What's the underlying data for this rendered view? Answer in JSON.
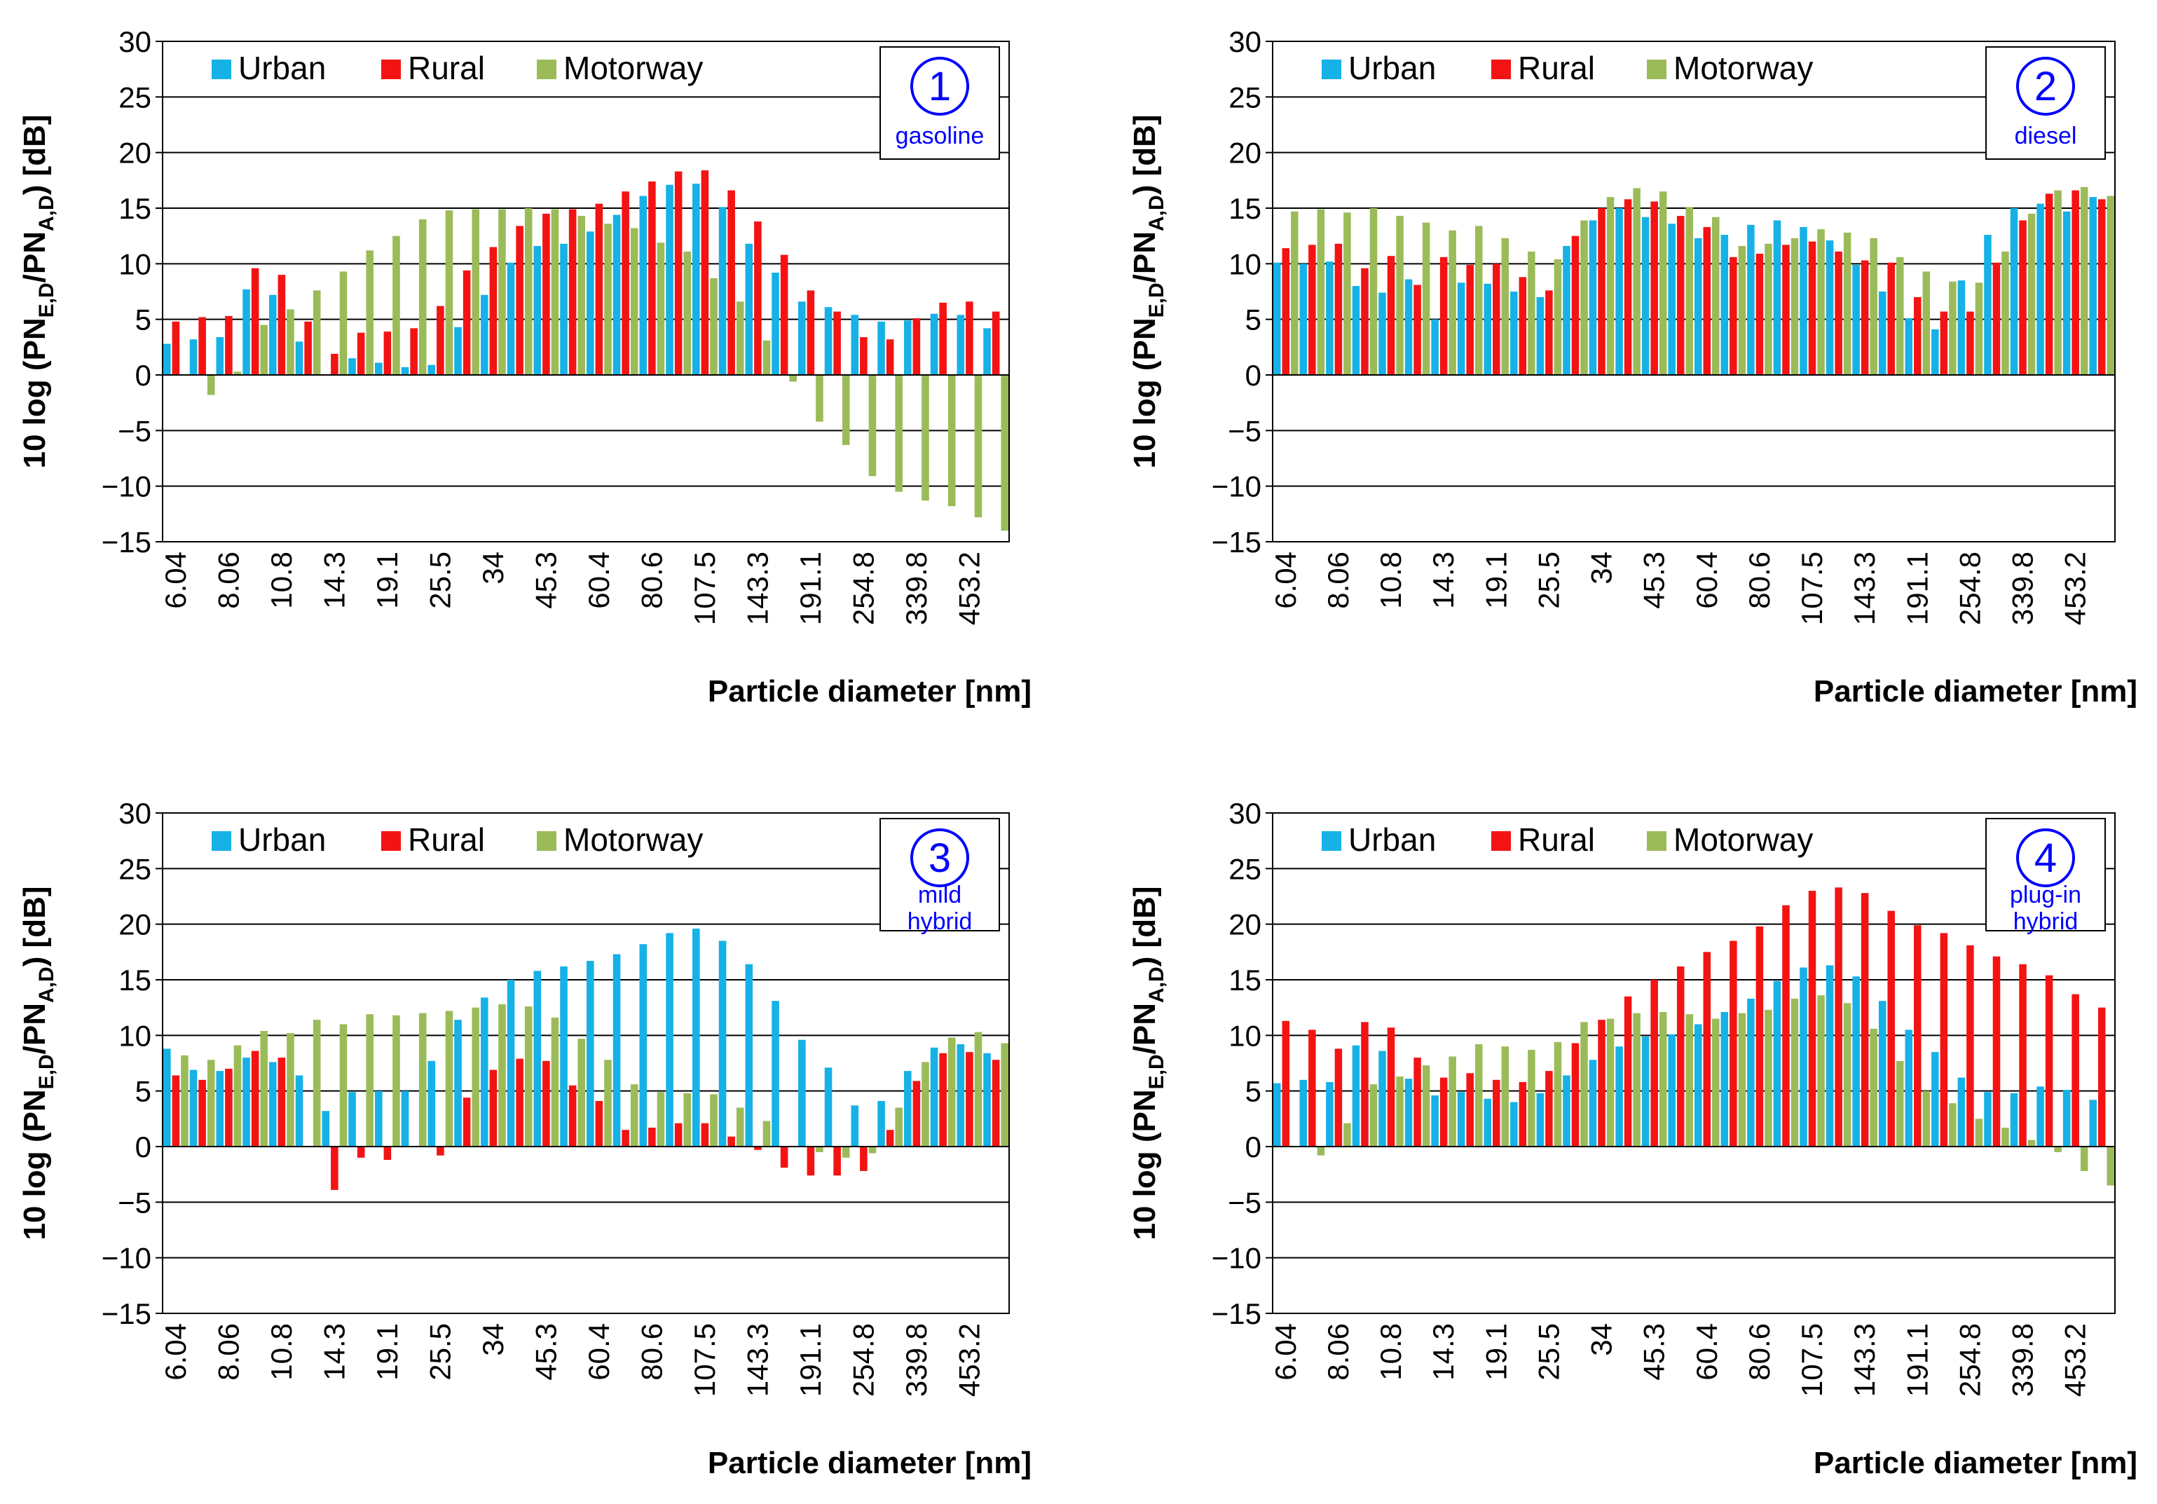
{
  "figure": {
    "bin_labels": [
      "6.04",
      "8.06",
      "10.8",
      "14.3",
      "19.1",
      "25.5",
      "34",
      "45.3",
      "60.4",
      "80.6",
      "107.5",
      "143.3",
      "191.1",
      "254.8",
      "339.8",
      "453.2"
    ],
    "colors": {
      "Urban": "#16b1e6",
      "Rural": "#f41313",
      "Motorway": "#9bbb59",
      "badge": "#0000ff",
      "axis": "#000000"
    },
    "legend": [
      "Urban",
      "Rural",
      "Motorway"
    ]
  },
  "chart_data": [
    {
      "type": "bar",
      "badge_number": "1",
      "badge_text": [
        "gasoline"
      ],
      "ylabel_prefix": "10 log (PN",
      "ylabel_sub1": "E,D",
      "ylabel_mid": "/PN",
      "ylabel_sub2": "A,D",
      "ylabel_suffix": ") [dB]",
      "xlabel": "Particle diameter [nm]",
      "ylim": [
        -15,
        30
      ],
      "yticks": [
        "30",
        "25",
        "20",
        "15",
        "10",
        "5",
        "0",
        "−5",
        "−10",
        "−15"
      ],
      "series": [
        {
          "name": "Urban",
          "values": [
            2.8,
            3.2,
            3.4,
            7.7,
            7.2,
            3.0,
            0.0,
            1.5,
            1.1,
            0.7,
            0.9,
            4.3,
            7.2,
            10.1,
            11.6,
            11.8,
            12.9,
            14.4,
            16.1,
            17.1,
            17.2,
            15.1,
            11.8,
            9.2,
            6.6,
            6.1,
            5.4,
            4.8,
            4.9,
            5.5,
            5.4,
            4.2
          ]
        },
        {
          "name": "Rural",
          "values": [
            4.8,
            5.2,
            5.3,
            9.6,
            9.0,
            4.8,
            1.9,
            3.8,
            3.9,
            4.2,
            6.2,
            9.4,
            11.5,
            13.4,
            14.5,
            14.9,
            15.4,
            16.5,
            17.4,
            18.3,
            18.4,
            16.6,
            13.8,
            10.8,
            7.6,
            5.7,
            3.4,
            3.2,
            5.1,
            6.5,
            6.6,
            5.7
          ]
        },
        {
          "name": "Motorway",
          "values": [
            0.0,
            -1.8,
            0.3,
            4.5,
            5.9,
            7.6,
            9.3,
            11.2,
            12.5,
            14.0,
            14.8,
            14.9,
            14.9,
            15.0,
            14.9,
            14.3,
            13.6,
            13.2,
            11.9,
            11.1,
            8.7,
            6.6,
            3.1,
            -0.6,
            -4.2,
            -6.3,
            -9.1,
            -10.5,
            -11.3,
            -11.8,
            -12.8,
            -14.0
          ]
        }
      ]
    },
    {
      "type": "bar",
      "badge_number": "2",
      "badge_text": [
        "diesel"
      ],
      "ylabel_prefix": "10 log (PN",
      "ylabel_sub1": "E,D",
      "ylabel_mid": "/PN",
      "ylabel_sub2": "A,D",
      "ylabel_suffix": ") [dB]",
      "xlabel": "Particle diameter [nm]",
      "ylim": [
        -15,
        30
      ],
      "yticks": [
        "30",
        "25",
        "20",
        "15",
        "10",
        "5",
        "0",
        "−5",
        "−10",
        "−15"
      ],
      "series": [
        {
          "name": "Urban",
          "values": [
            10.1,
            10.0,
            10.2,
            8.0,
            7.4,
            8.6,
            5.0,
            8.3,
            8.2,
            7.5,
            7.0,
            11.6,
            13.9,
            15.0,
            14.2,
            13.6,
            12.3,
            12.6,
            13.5,
            13.9,
            13.3,
            12.1,
            9.9,
            7.5,
            5.1,
            4.1,
            8.5,
            12.6,
            15.0,
            15.4,
            14.7,
            16.0
          ]
        },
        {
          "name": "Rural",
          "values": [
            11.4,
            11.7,
            11.8,
            9.6,
            10.7,
            8.1,
            10.6,
            9.9,
            10.0,
            8.8,
            7.6,
            12.5,
            15.0,
            15.8,
            15.6,
            14.3,
            13.3,
            10.6,
            10.9,
            11.7,
            12.0,
            11.1,
            10.3,
            10.1,
            7.0,
            5.7,
            5.7,
            10.1,
            13.9,
            16.3,
            16.6,
            15.8
          ]
        },
        {
          "name": "Motorway",
          "values": [
            14.7,
            14.9,
            14.6,
            15.0,
            14.3,
            13.7,
            13.0,
            13.4,
            12.3,
            11.1,
            10.4,
            13.9,
            16.0,
            16.8,
            16.5,
            15.1,
            14.2,
            11.6,
            11.8,
            12.3,
            13.1,
            12.8,
            12.3,
            10.6,
            9.3,
            8.4,
            8.3,
            11.1,
            14.5,
            16.6,
            16.9,
            16.1
          ]
        }
      ]
    },
    {
      "type": "bar",
      "badge_number": "3",
      "badge_text": [
        "mild",
        "hybrid"
      ],
      "ylabel_prefix": "10 log (PN",
      "ylabel_sub1": "E,D",
      "ylabel_mid": "/PN",
      "ylabel_sub2": "A,D",
      "ylabel_suffix": ") [dB]",
      "xlabel": "Particle diameter [nm]",
      "ylim": [
        -15,
        30
      ],
      "yticks": [
        "30",
        "25",
        "20",
        "15",
        "10",
        "5",
        "0",
        "−5",
        "−10",
        "−15"
      ],
      "series": [
        {
          "name": "Urban",
          "values": [
            8.8,
            6.9,
            6.8,
            8.0,
            7.6,
            6.4,
            3.2,
            4.9,
            5.0,
            5.0,
            7.7,
            11.4,
            13.4,
            15.0,
            15.8,
            16.2,
            16.7,
            17.3,
            18.2,
            19.2,
            19.6,
            18.5,
            16.4,
            13.1,
            9.6,
            7.1,
            3.7,
            4.1,
            6.8,
            8.9,
            9.2,
            8.4
          ]
        },
        {
          "name": "Rural",
          "values": [
            6.4,
            6.0,
            7.0,
            8.6,
            8.0,
            0.0,
            -3.9,
            -1.0,
            -1.2,
            0.0,
            -0.8,
            4.4,
            6.9,
            7.9,
            7.7,
            5.5,
            4.1,
            1.5,
            1.7,
            2.1,
            2.1,
            0.9,
            -0.3,
            -1.9,
            -2.6,
            -2.6,
            -2.2,
            1.5,
            5.9,
            8.4,
            8.5,
            7.8
          ]
        },
        {
          "name": "Motorway",
          "values": [
            8.2,
            7.8,
            9.1,
            10.4,
            10.2,
            11.4,
            11.0,
            11.9,
            11.8,
            12.0,
            12.2,
            12.5,
            12.8,
            12.6,
            11.6,
            9.7,
            7.8,
            5.6,
            4.9,
            4.8,
            4.7,
            3.5,
            2.3,
            0.0,
            -0.5,
            -1.0,
            -0.6,
            3.5,
            7.6,
            9.8,
            10.3,
            9.3
          ]
        }
      ]
    },
    {
      "type": "bar",
      "badge_number": "4",
      "badge_text": [
        "plug-in",
        "hybrid"
      ],
      "ylabel_prefix": "10 log (PN",
      "ylabel_sub1": "E,D",
      "ylabel_mid": "/PN",
      "ylabel_sub2": "A,D",
      "ylabel_suffix": ") [dB]",
      "xlabel": "Particle diameter [nm]",
      "ylim": [
        -15,
        30
      ],
      "yticks": [
        "30",
        "25",
        "20",
        "15",
        "10",
        "5",
        "0",
        "−5",
        "−10",
        "−15"
      ],
      "series": [
        {
          "name": "Urban",
          "values": [
            5.7,
            6.0,
            5.8,
            9.1,
            8.6,
            6.1,
            4.6,
            4.9,
            4.3,
            4.0,
            4.8,
            6.4,
            7.8,
            9.0,
            9.9,
            10.1,
            11.0,
            12.1,
            13.3,
            14.9,
            16.1,
            16.3,
            15.3,
            13.1,
            10.5,
            8.5,
            6.2,
            4.9,
            4.8,
            5.4,
            5.1,
            4.2
          ]
        },
        {
          "name": "Rural",
          "values": [
            11.3,
            10.5,
            8.8,
            11.2,
            10.7,
            8.0,
            6.2,
            6.6,
            6.0,
            5.8,
            6.8,
            9.3,
            11.4,
            13.5,
            15.0,
            16.2,
            17.5,
            18.5,
            19.8,
            21.7,
            23.0,
            23.3,
            22.8,
            21.2,
            19.9,
            19.2,
            18.1,
            17.1,
            16.4,
            15.4,
            13.7,
            12.5
          ]
        },
        {
          "name": "Motorway",
          "values": [
            0.0,
            -0.8,
            2.1,
            5.6,
            6.3,
            7.3,
            8.1,
            9.2,
            9.0,
            8.7,
            9.4,
            11.2,
            11.5,
            12.0,
            12.1,
            11.9,
            11.5,
            12.0,
            12.3,
            13.3,
            13.6,
            12.9,
            10.6,
            7.7,
            5.0,
            3.9,
            2.5,
            1.7,
            0.6,
            -0.5,
            -2.2,
            -3.5
          ]
        }
      ]
    }
  ]
}
